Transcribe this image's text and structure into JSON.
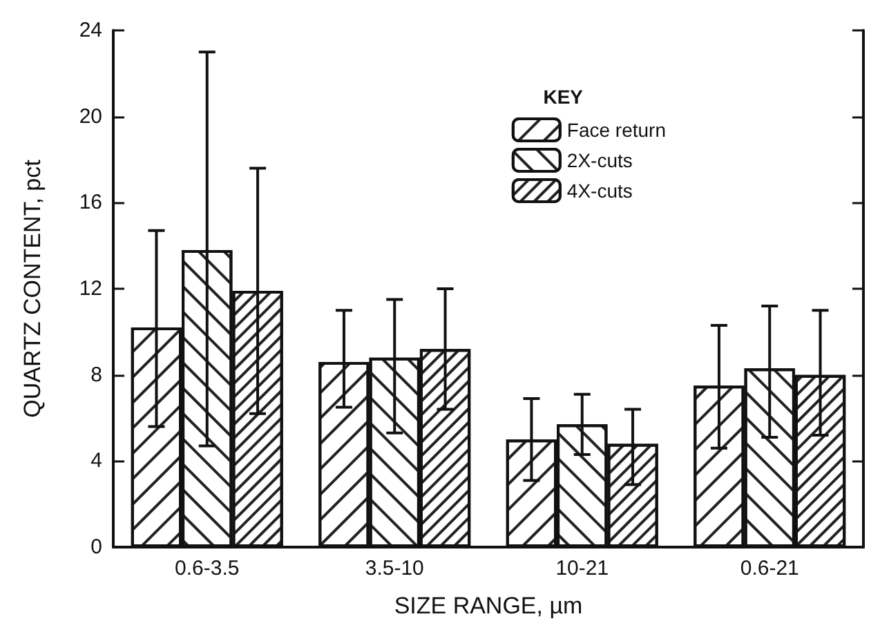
{
  "chart_data": {
    "type": "bar",
    "xlabel": "SIZE RANGE, µm",
    "ylabel": "QUARTZ CONTENT, pct",
    "legend_title": "KEY",
    "legend": "top right",
    "grid": false,
    "categories": [
      "0.6-3.5",
      "3.5-10",
      "10-21",
      "0.6-21"
    ],
    "ylim": [
      0,
      24
    ],
    "yticks": [
      0,
      4,
      8,
      12,
      16,
      20,
      24
    ],
    "series": [
      {
        "name": "Face return",
        "color": "#ffffff",
        "values": [
          10.2,
          8.6,
          5.0,
          7.5
        ],
        "errors": [
          [
            5.6,
            14.7
          ],
          [
            6.5,
            11.0
          ],
          [
            3.1,
            6.9
          ],
          [
            4.6,
            10.3
          ]
        ]
      },
      {
        "name": "2X-cuts",
        "color": "#ffffff",
        "values": [
          13.8,
          8.8,
          5.7,
          8.3
        ],
        "errors": [
          [
            4.7,
            23.0
          ],
          [
            5.3,
            11.5
          ],
          [
            4.3,
            7.1
          ],
          [
            5.1,
            11.2
          ]
        ]
      },
      {
        "name": "4X-cuts",
        "color": "#ffffff",
        "values": [
          11.9,
          9.2,
          4.8,
          8.0
        ],
        "errors": [
          [
            6.2,
            17.6
          ],
          [
            6.4,
            12.0
          ],
          [
            2.9,
            6.4
          ],
          [
            5.2,
            11.0
          ]
        ]
      }
    ]
  }
}
